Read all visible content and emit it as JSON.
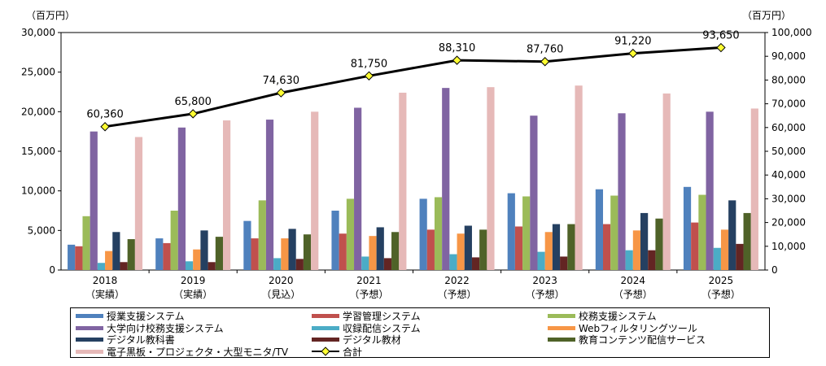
{
  "chart_data": {
    "type": "bar",
    "left_axis_unit": "（百万円）",
    "right_axis_unit": "（百万円）",
    "categories": [
      "2018\n（実績）",
      "2019\n（実績）",
      "2020\n（見込）",
      "2021\n（予想）",
      "2022\n（予想）",
      "2023\n（予想）",
      "2024\n（予想）",
      "2025\n（予想）"
    ],
    "y_left": {
      "min": 0,
      "max": 30000,
      "ticks": [
        "0",
        "5,000",
        "10,000",
        "15,000",
        "20,000",
        "25,000",
        "30,000"
      ]
    },
    "y_right": {
      "min": 0,
      "max": 100000,
      "ticks": [
        "0",
        "10,000",
        "20,000",
        "30,000",
        "40,000",
        "50,000",
        "60,000",
        "70,000",
        "80,000",
        "90,000",
        "100,000"
      ]
    },
    "grid": false,
    "series": [
      {
        "name": "授業支援システム",
        "color": "#4f81bd",
        "values": [
          3200,
          4000,
          6200,
          7500,
          9000,
          9700,
          10200,
          10500
        ]
      },
      {
        "name": "学習管理システム",
        "color": "#c0504d",
        "values": [
          3000,
          3400,
          4000,
          4600,
          5100,
          5500,
          5800,
          6000
        ]
      },
      {
        "name": "校務支援システム",
        "color": "#9bbb59",
        "values": [
          6800,
          7500,
          8800,
          9000,
          9200,
          9300,
          9400,
          9500
        ]
      },
      {
        "name": "大学向け校務支援システム",
        "color": "#8064a2",
        "values": [
          17500,
          18000,
          19000,
          20500,
          23000,
          19500,
          19800,
          20000
        ]
      },
      {
        "name": "収録配信システム",
        "color": "#4bacc6",
        "values": [
          900,
          1100,
          1500,
          1700,
          2000,
          2300,
          2500,
          2800
        ]
      },
      {
        "name": "Webフィルタリングツール",
        "color": "#f79646",
        "values": [
          2400,
          2600,
          4000,
          4300,
          4600,
          4800,
          5000,
          5100
        ]
      },
      {
        "name": "デジタル教科書",
        "color": "#254061",
        "values": [
          4800,
          5000,
          5200,
          5400,
          5600,
          5800,
          7200,
          8800
        ]
      },
      {
        "name": "デジタル教材",
        "color": "#632523",
        "values": [
          1000,
          1000,
          1400,
          1500,
          1600,
          1700,
          2500,
          3300
        ]
      },
      {
        "name": "教育コンテンツ配信サービス",
        "color": "#4f6228",
        "values": [
          3900,
          4200,
          4500,
          4800,
          5100,
          5800,
          6500,
          7200
        ]
      },
      {
        "name": "電子黒板・プロジェクタ・大型モニタ/TV",
        "color": "#e6b9b8",
        "values": [
          16800,
          18900,
          20000,
          22400,
          23100,
          23300,
          22300,
          20400
        ]
      }
    ],
    "line_series": {
      "name": "合計",
      "axis": "right",
      "color": "#000000",
      "marker_color": "#ffff33",
      "values": [
        60360,
        65800,
        74630,
        81750,
        88310,
        87760,
        91220,
        93650
      ],
      "labels": [
        "60,360",
        "65,800",
        "74,630",
        "81,750",
        "88,310",
        "87,760",
        "91,220",
        "93,650"
      ]
    },
    "legend_placement": "bottom"
  }
}
